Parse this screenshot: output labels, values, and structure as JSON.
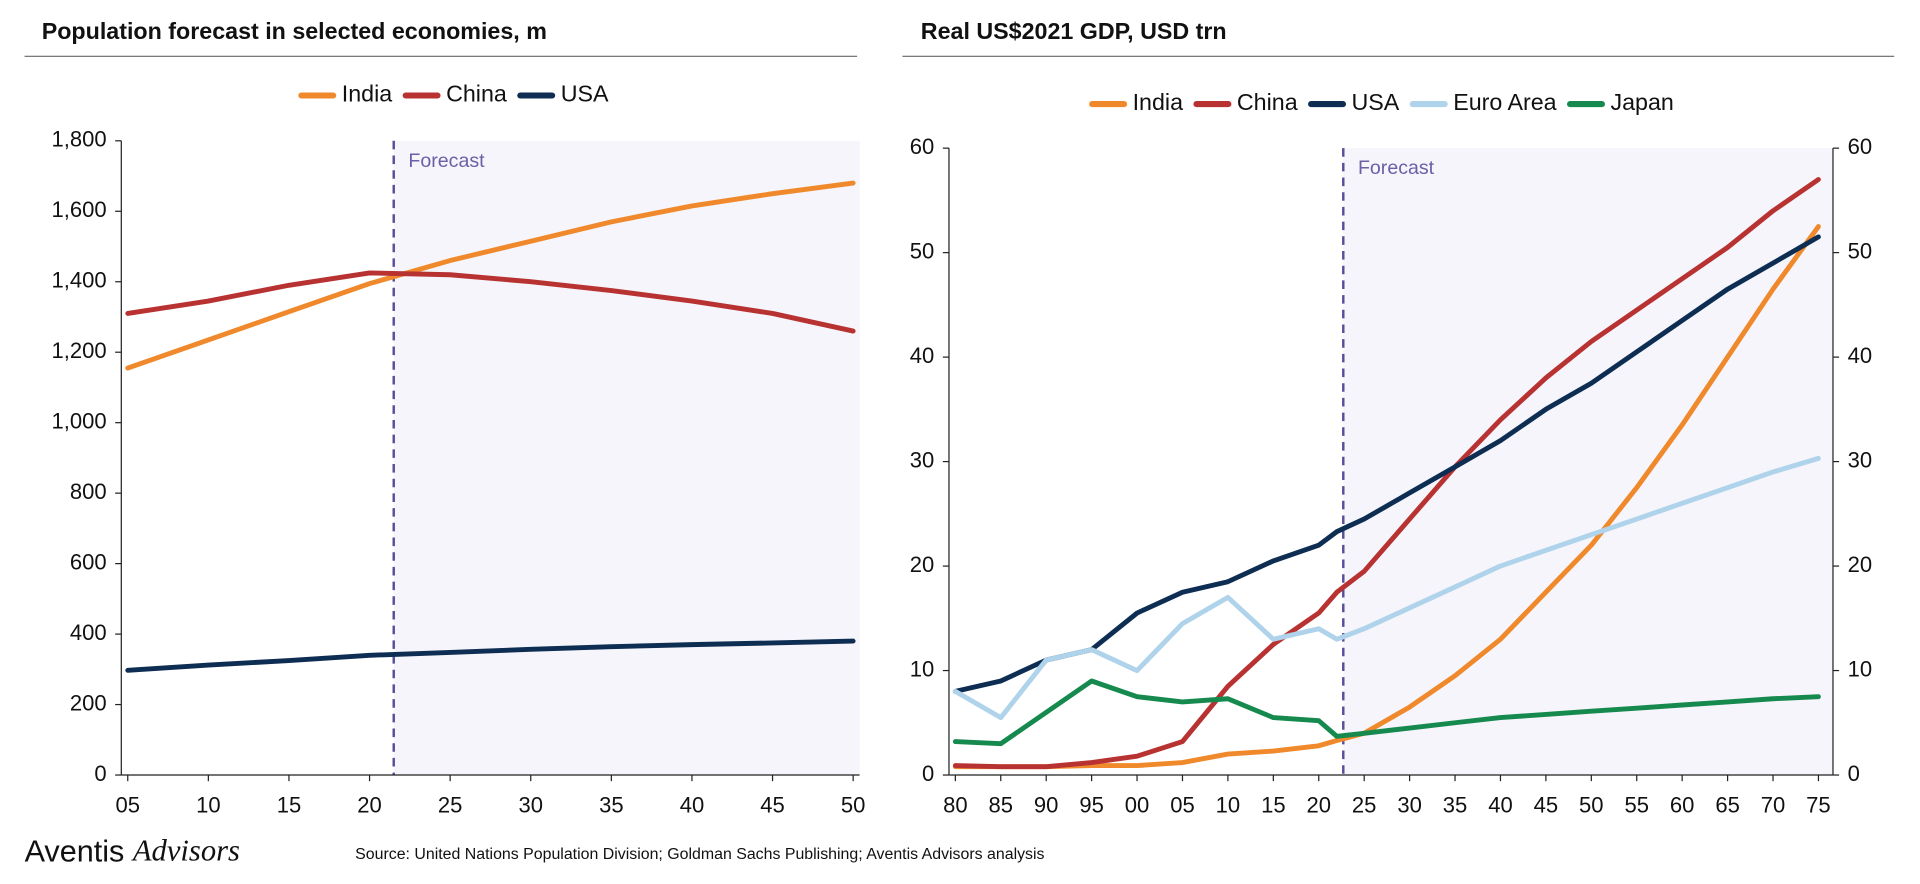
{
  "chart_data": [
    {
      "type": "line",
      "title": "Population forecast in selected economies, m",
      "annotation": "Forecast",
      "forecast_x": 2021.5,
      "x": [
        2005,
        2010,
        2015,
        2020,
        2025,
        2030,
        2035,
        2040,
        2045,
        2050
      ],
      "series": [
        {
          "name": "India",
          "color": "#f0892b",
          "values": [
            1155,
            1235,
            1315,
            1395,
            1460,
            1515,
            1570,
            1615,
            1650,
            1680
          ]
        },
        {
          "name": "China",
          "color": "#b83232",
          "values": [
            1310,
            1345,
            1390,
            1425,
            1420,
            1400,
            1375,
            1345,
            1310,
            1260
          ]
        },
        {
          "name": "USA",
          "color": "#0e2d52",
          "values": [
            297,
            312,
            325,
            340,
            348,
            357,
            364,
            370,
            375,
            380
          ]
        }
      ],
      "xlim": [
        2004.6,
        2050.4
      ],
      "xticks": [
        {
          "value": 2005,
          "label": "05"
        },
        {
          "value": 2010,
          "label": "10"
        },
        {
          "value": 2015,
          "label": "15"
        },
        {
          "value": 2020,
          "label": "20"
        },
        {
          "value": 2025,
          "label": "25"
        },
        {
          "value": 2030,
          "label": "30"
        },
        {
          "value": 2035,
          "label": "35"
        },
        {
          "value": 2040,
          "label": "40"
        },
        {
          "value": 2045,
          "label": "45"
        },
        {
          "value": 2050,
          "label": "50"
        }
      ],
      "ylim": [
        0,
        1800
      ],
      "yticks": [
        0,
        200,
        400,
        600,
        800,
        {
          "value": 1000,
          "label": "1,000"
        },
        {
          "value": 1200,
          "label": "1,200"
        },
        {
          "value": 1400,
          "label": "1,400"
        },
        {
          "value": 1600,
          "label": "1,600"
        },
        {
          "value": 1800,
          "label": "1,800"
        }
      ],
      "legend": "top",
      "grid": false
    },
    {
      "type": "line",
      "title": "Real US$2021 GDP, USD trn",
      "annotation": "Forecast",
      "forecast_x": 2022.7,
      "x": [
        1980,
        1985,
        1990,
        1995,
        2000,
        2005,
        2010,
        2015,
        2020,
        2022,
        2025,
        2030,
        2035,
        2040,
        2045,
        2050,
        2055,
        2060,
        2065,
        2070,
        2075
      ],
      "series": [
        {
          "name": "India",
          "color": "#f0892b",
          "values": [
            0.8,
            0.8,
            0.8,
            0.9,
            0.9,
            1.2,
            2.0,
            2.3,
            2.8,
            3.3,
            4.0,
            6.5,
            9.5,
            13,
            17.5,
            22,
            27.5,
            33.5,
            40,
            46.5,
            52.5
          ]
        },
        {
          "name": "China",
          "color": "#b83232",
          "values": [
            0.9,
            0.8,
            0.8,
            1.2,
            1.8,
            3.2,
            8.5,
            12.5,
            15.5,
            17.5,
            19.5,
            24.5,
            29.5,
            34,
            38,
            41.5,
            44.5,
            47.5,
            50.5,
            54,
            57
          ]
        },
        {
          "name": "USA",
          "color": "#0e2d52",
          "values": [
            8,
            9,
            11,
            12,
            15.5,
            17.5,
            18.5,
            20.5,
            22,
            23.3,
            24.5,
            27,
            29.5,
            32,
            35,
            37.5,
            40.5,
            43.5,
            46.5,
            49,
            51.5
          ]
        },
        {
          "name": "Euro Area",
          "color": "#aed3ea",
          "values": [
            8,
            5.5,
            11,
            12,
            10,
            14.5,
            17,
            13,
            14,
            13,
            14,
            16,
            18,
            20,
            21.5,
            23,
            24.5,
            26,
            27.5,
            29,
            30.3
          ]
        },
        {
          "name": "Japan",
          "color": "#168a4e",
          "values": [
            3.2,
            3.0,
            6,
            9,
            7.5,
            7,
            7.3,
            5.5,
            5.2,
            3.7,
            4.0,
            4.5,
            5,
            5.5,
            5.8,
            6.1,
            6.4,
            6.7,
            7,
            7.3,
            7.5
          ]
        }
      ],
      "xlim": [
        1979.3,
        2076.6
      ],
      "xticks": [
        {
          "value": 1980,
          "label": "80"
        },
        {
          "value": 1985,
          "label": "85"
        },
        {
          "value": 1990,
          "label": "90"
        },
        {
          "value": 1995,
          "label": "95"
        },
        {
          "value": 2000,
          "label": "00"
        },
        {
          "value": 2005,
          "label": "05"
        },
        {
          "value": 2010,
          "label": "10"
        },
        {
          "value": 2015,
          "label": "15"
        },
        {
          "value": 2020,
          "label": "20"
        },
        {
          "value": 2025,
          "label": "25"
        },
        {
          "value": 2030,
          "label": "30"
        },
        {
          "value": 2035,
          "label": "35"
        },
        {
          "value": 2040,
          "label": "40"
        },
        {
          "value": 2045,
          "label": "45"
        },
        {
          "value": 2050,
          "label": "50"
        },
        {
          "value": 2055,
          "label": "55"
        },
        {
          "value": 2060,
          "label": "60"
        },
        {
          "value": 2065,
          "label": "65"
        },
        {
          "value": 2070,
          "label": "70"
        },
        {
          "value": 2075,
          "label": "75"
        }
      ],
      "ylim": [
        0,
        60
      ],
      "yticks": [
        0,
        10,
        20,
        30,
        40,
        50,
        60
      ],
      "y2lim": [
        0,
        60
      ],
      "y2ticks": [
        0,
        10,
        20,
        30,
        40,
        50,
        60
      ],
      "legend": "top",
      "grid": false
    }
  ],
  "footer": {
    "logo_1": "Aventis",
    "logo_2": "Advisors",
    "source": "Source: United Nations Population Division; Goldman Sachs Publishing; Aventis Advisors analysis"
  }
}
